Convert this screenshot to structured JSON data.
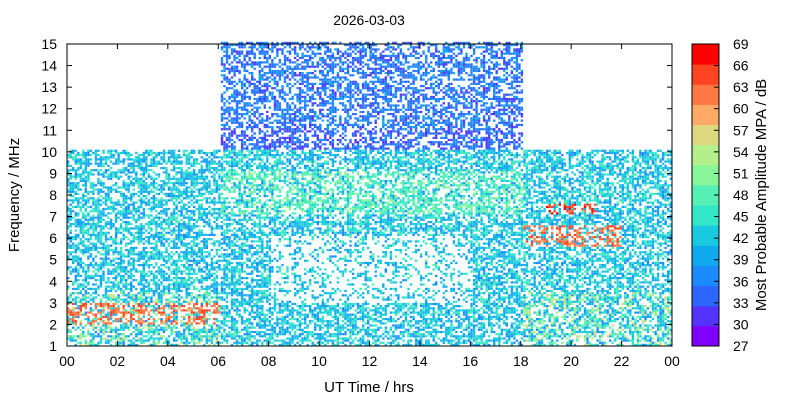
{
  "chart_data": {
    "type": "heatmap",
    "title": "2026-03-03",
    "xlabel": "UT Time / hrs",
    "ylabel": "Frequency / MHz",
    "xlim": [
      0,
      24
    ],
    "ylim": [
      1,
      15
    ],
    "x_ticks": [
      "00",
      "02",
      "04",
      "06",
      "08",
      "10",
      "12",
      "14",
      "16",
      "18",
      "20",
      "22",
      "00"
    ],
    "y_ticks": [
      "1",
      "2",
      "3",
      "4",
      "5",
      "6",
      "7",
      "8",
      "9",
      "10",
      "11",
      "12",
      "13",
      "14",
      "15"
    ],
    "colorbar": {
      "label": "Most Probable Amplitude MPA / dB",
      "ticks": [
        "27",
        "30",
        "33",
        "36",
        "39",
        "42",
        "45",
        "48",
        "51",
        "54",
        "57",
        "60",
        "63",
        "66",
        "69"
      ],
      "range": [
        27,
        69
      ],
      "colors": [
        "#7f00ff",
        "#5533ff",
        "#2a66ff",
        "#1a8cff",
        "#10aaee",
        "#19c9e0",
        "#33e6c8",
        "#55f0b4",
        "#88f597",
        "#b4f08a",
        "#dcd880",
        "#ffaa66",
        "#ff7744",
        "#ff4422",
        "#ff0000"
      ]
    },
    "band_coverage": [
      {
        "hours": [
          0,
          6
        ],
        "freq_mhz": [
          1,
          10
        ]
      },
      {
        "hours": [
          6,
          18
        ],
        "freq_mhz": [
          1,
          15
        ]
      },
      {
        "hours": [
          18,
          24
        ],
        "freq_mhz": [
          1,
          10
        ]
      }
    ],
    "intensity_levels_db": [
      {
        "hours": [
          0,
          6
        ],
        "freq_mhz": [
          2,
          3
        ],
        "mpa_db": 63
      },
      {
        "hours": [
          19,
          21
        ],
        "freq_mhz": [
          7,
          7.5
        ],
        "mpa_db": 66
      },
      {
        "hours": [
          18,
          22
        ],
        "freq_mhz": [
          5.5,
          6.5
        ],
        "mpa_db": 63
      },
      {
        "hours": [
          6,
          18
        ],
        "freq_mhz": [
          11,
          15
        ],
        "mpa_db": 36
      },
      {
        "hours": [
          6,
          18
        ],
        "freq_mhz": [
          7,
          9
        ],
        "mpa_db": 48
      }
    ]
  }
}
